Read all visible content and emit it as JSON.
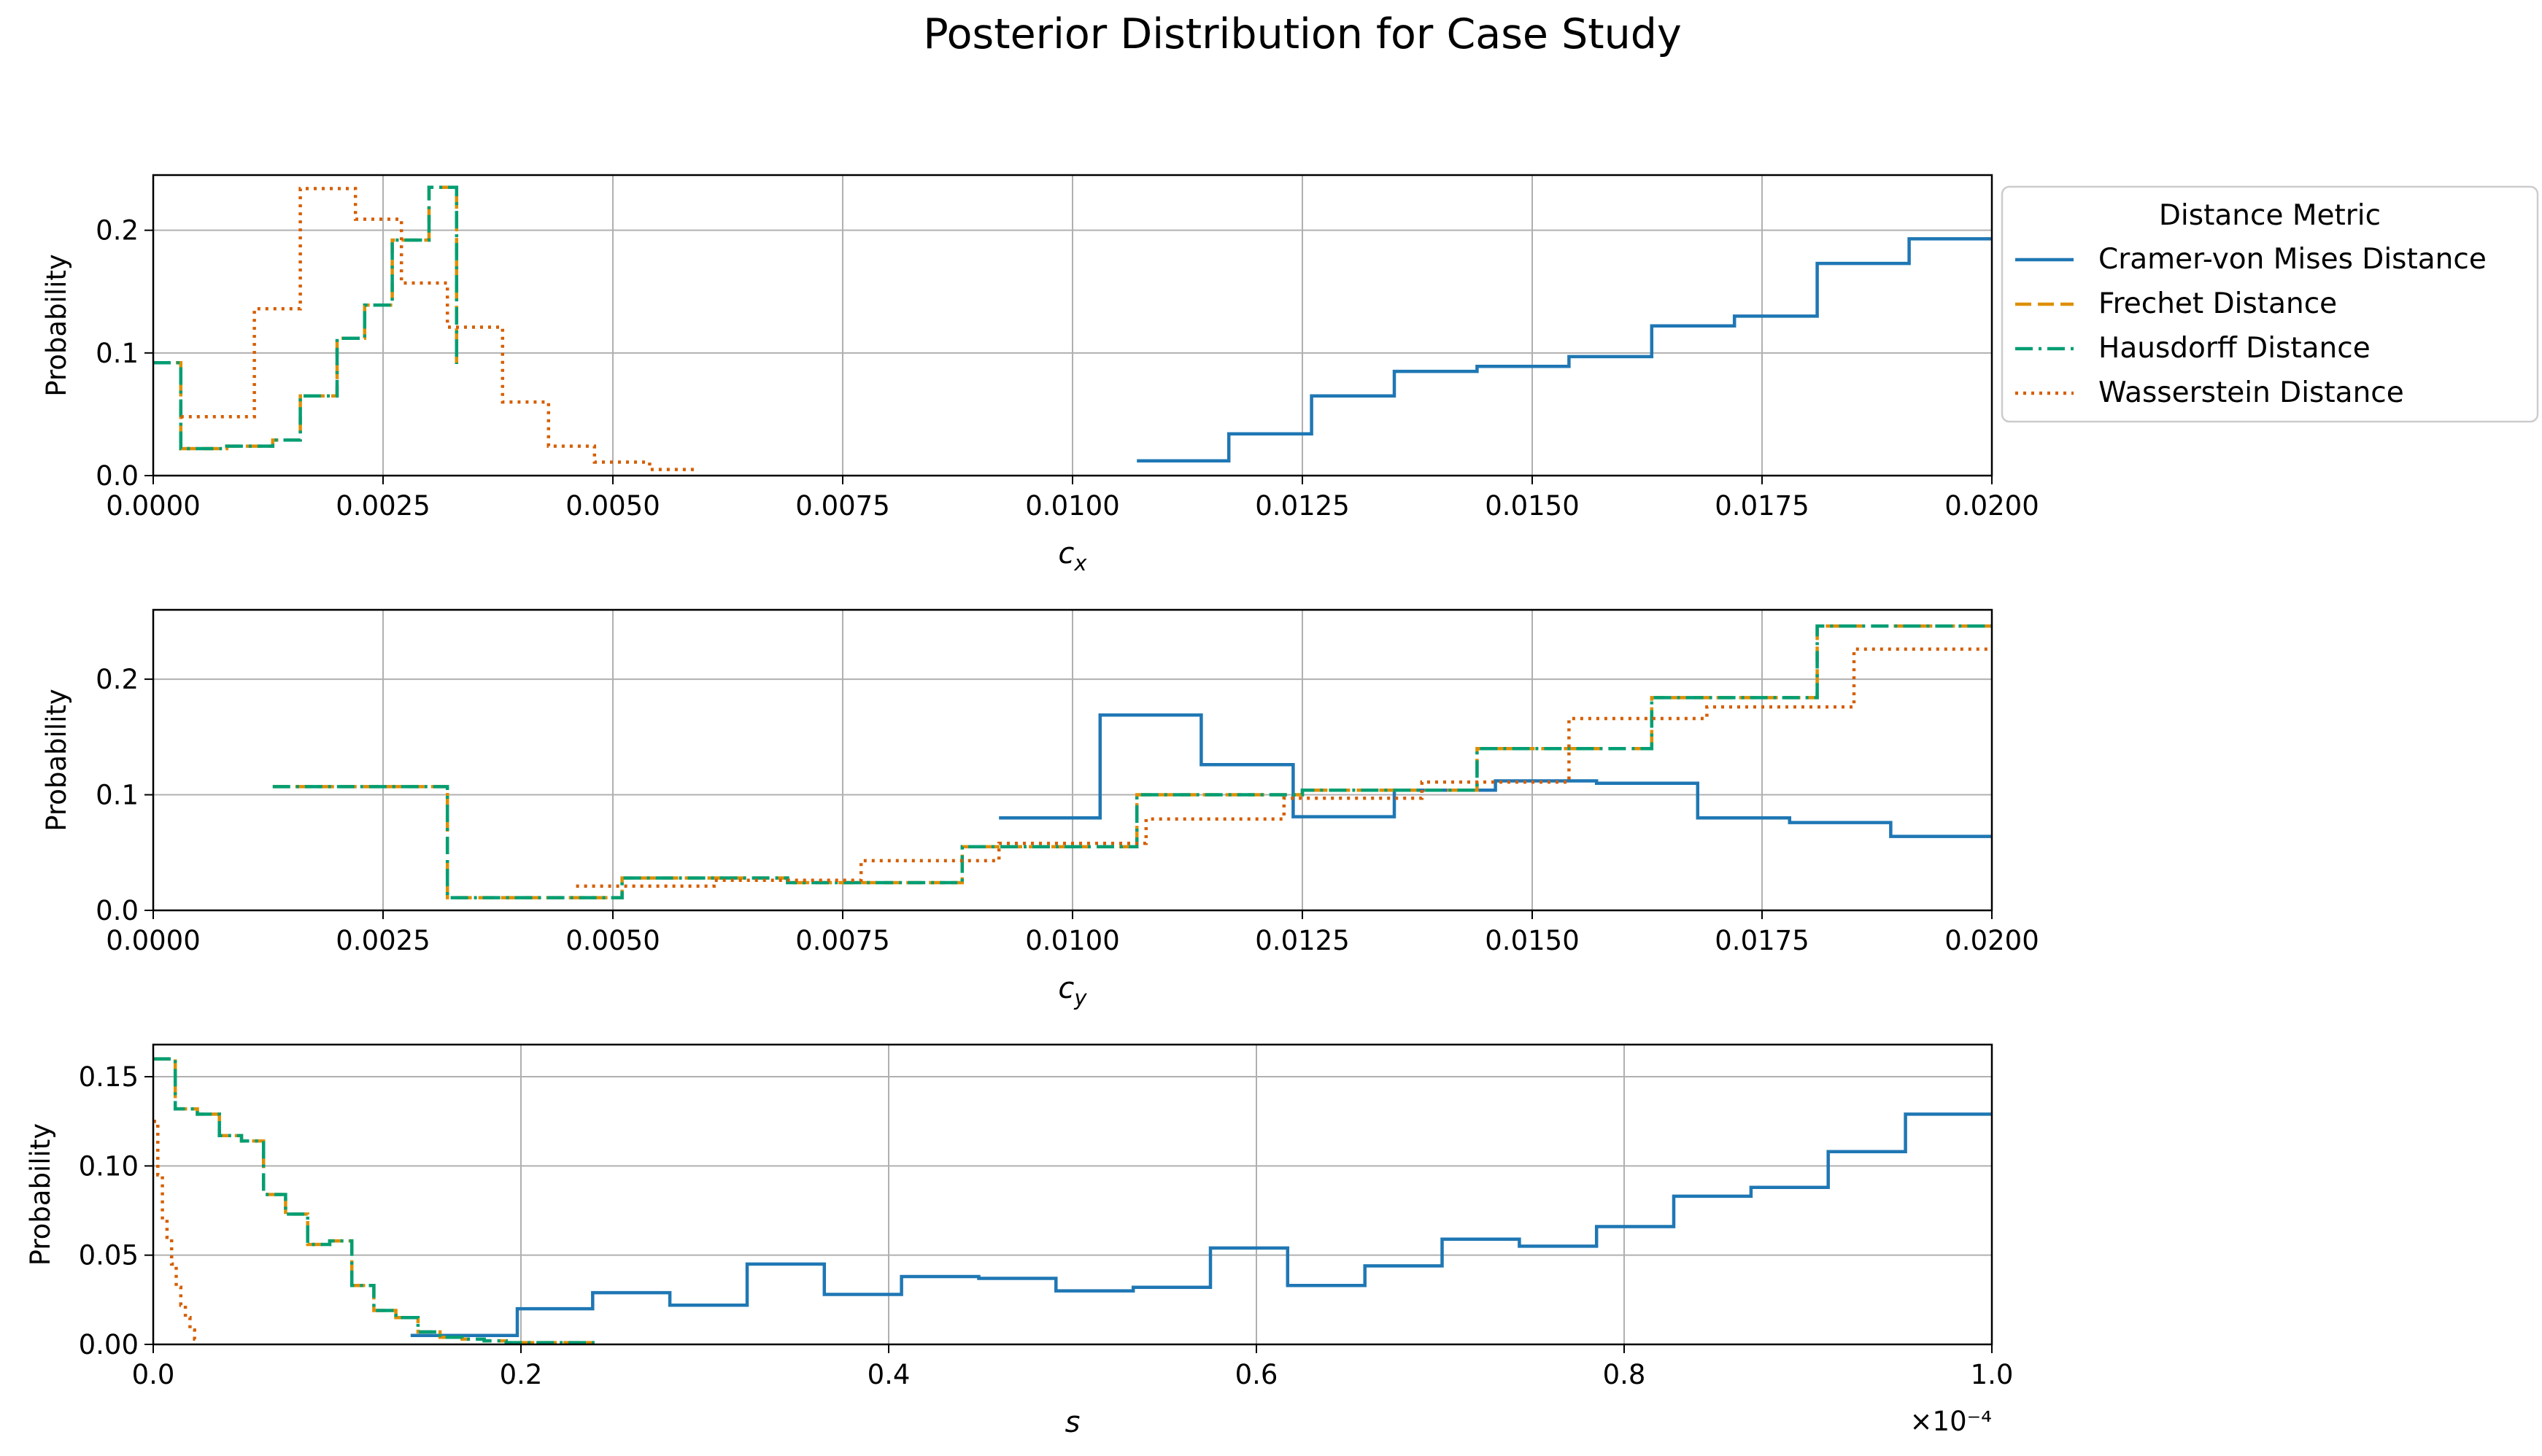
{
  "title": "Posterior Distribution for Case Study",
  "legend": {
    "title": "Distance Metric",
    "placement": "right-of-first-panel",
    "entries": [
      {
        "name": "Cramer-von Mises Distance",
        "color": "#1f77b4",
        "style": "solid"
      },
      {
        "name": "Frechet Distance",
        "color": "#de8f05",
        "style": "dashed"
      },
      {
        "name": "Hausdorff Distance",
        "color": "#029e73",
        "style": "dashdot"
      },
      {
        "name": "Wasserstein Distance",
        "color": "#d55e00",
        "style": "dotted"
      }
    ]
  },
  "chart_data": [
    {
      "type": "step",
      "xlabel": "c_x",
      "ylabel": "Probability",
      "xlim": [
        0,
        0.02
      ],
      "ylim": [
        0,
        0.245
      ],
      "grid": true,
      "xticks": [
        0,
        0.0025,
        0.005,
        0.0075,
        0.01,
        0.0125,
        0.015,
        0.0175,
        0.02
      ],
      "xtick_labels": [
        "0.0000",
        "0.0025",
        "0.0050",
        "0.0075",
        "0.0100",
        "0.0125",
        "0.0150",
        "0.0175",
        "0.0200"
      ],
      "yticks": [
        0,
        0.1,
        0.2
      ],
      "ytick_labels": [
        "0.0",
        "0.1",
        "0.2"
      ],
      "series": [
        {
          "name": "Cramer-von Mises Distance",
          "edges": [
            0.0107,
            0.0117,
            0.0126,
            0.0135,
            0.0144,
            0.0154,
            0.0163,
            0.0172,
            0.0181,
            0.0191,
            0.02
          ],
          "values": [
            0.012,
            0.034,
            0.065,
            0.085,
            0.089,
            0.097,
            0.122,
            0.13,
            0.173,
            0.193
          ]
        },
        {
          "name": "Frechet Distance",
          "edges": [
            0.0,
            0.0003,
            0.0008,
            0.0013,
            0.0016,
            0.002,
            0.0023,
            0.0026,
            0.003,
            0.0033
          ],
          "values": [
            0.092,
            0.022,
            0.024,
            0.029,
            0.065,
            0.112,
            0.139,
            0.192,
            0.235,
            0.091
          ]
        },
        {
          "name": "Hausdorff Distance",
          "edges": [
            0.0,
            0.0003,
            0.0008,
            0.0013,
            0.0016,
            0.002,
            0.0023,
            0.0026,
            0.003,
            0.0033
          ],
          "values": [
            0.092,
            0.022,
            0.024,
            0.029,
            0.065,
            0.112,
            0.139,
            0.192,
            0.235,
            0.091
          ]
        },
        {
          "name": "Wasserstein Distance",
          "edges": [
            0.0003,
            0.0011,
            0.0016,
            0.0022,
            0.0027,
            0.0032,
            0.0038,
            0.0043,
            0.0048,
            0.0054,
            0.0059
          ],
          "values": [
            0.048,
            0.136,
            0.234,
            0.209,
            0.157,
            0.121,
            0.06,
            0.024,
            0.011,
            0.005
          ]
        }
      ]
    },
    {
      "type": "step",
      "xlabel": "c_y",
      "ylabel": "Probability",
      "xlim": [
        0,
        0.02
      ],
      "ylim": [
        0,
        0.26
      ],
      "grid": true,
      "xticks": [
        0,
        0.0025,
        0.005,
        0.0075,
        0.01,
        0.0125,
        0.015,
        0.0175,
        0.02
      ],
      "xtick_labels": [
        "0.0000",
        "0.0025",
        "0.0050",
        "0.0075",
        "0.0100",
        "0.0125",
        "0.0150",
        "0.0175",
        "0.0200"
      ],
      "yticks": [
        0,
        0.1,
        0.2
      ],
      "ytick_labels": [
        "0.0",
        "0.1",
        "0.2"
      ],
      "series": [
        {
          "name": "Cramer-von Mises Distance",
          "edges": [
            0.0092,
            0.0103,
            0.0114,
            0.0124,
            0.0135,
            0.0146,
            0.0157,
            0.0168,
            0.0178,
            0.0189,
            0.02
          ],
          "values": [
            0.08,
            0.169,
            0.126,
            0.081,
            0.104,
            0.112,
            0.11,
            0.08,
            0.076,
            0.064
          ]
        },
        {
          "name": "Frechet Distance",
          "edges": [
            0.0013,
            0.0032,
            0.0051,
            0.0069,
            0.0088,
            0.0107,
            0.0125,
            0.0144,
            0.0163,
            0.0181,
            0.02
          ],
          "values": [
            0.107,
            0.011,
            0.028,
            0.024,
            0.055,
            0.1,
            0.104,
            0.14,
            0.184,
            0.246
          ]
        },
        {
          "name": "Hausdorff Distance",
          "edges": [
            0.0013,
            0.0032,
            0.0051,
            0.0069,
            0.0088,
            0.0107,
            0.0125,
            0.0144,
            0.0163,
            0.0181,
            0.02
          ],
          "values": [
            0.107,
            0.011,
            0.028,
            0.024,
            0.055,
            0.1,
            0.104,
            0.14,
            0.184,
            0.246
          ]
        },
        {
          "name": "Wasserstein Distance",
          "edges": [
            0.0046,
            0.0061,
            0.0077,
            0.0092,
            0.0108,
            0.0123,
            0.0138,
            0.0154,
            0.0169,
            0.0185,
            0.02
          ],
          "values": [
            0.021,
            0.026,
            0.043,
            0.058,
            0.079,
            0.097,
            0.111,
            0.166,
            0.176,
            0.226
          ]
        }
      ]
    },
    {
      "type": "step",
      "xlabel": "s",
      "ylabel": "Probability",
      "xlim": [
        0,
        1.0
      ],
      "x_scale_note": "×10⁻⁴",
      "ylim": [
        0,
        0.168
      ],
      "grid": true,
      "xticks": [
        0,
        0.2,
        0.4,
        0.6,
        0.8,
        1.0
      ],
      "xtick_labels": [
        "0.0",
        "0.2",
        "0.4",
        "0.6",
        "0.8",
        "1.0"
      ],
      "yticks": [
        0,
        0.05,
        0.1,
        0.15
      ],
      "ytick_labels": [
        "0.00",
        "0.05",
        "0.10",
        "0.15"
      ],
      "series": [
        {
          "name": "Cramer-von Mises Distance",
          "edges": [
            0.14,
            0.198,
            0.239,
            0.281,
            0.323,
            0.365,
            0.407,
            0.449,
            0.491,
            0.533,
            0.575,
            0.617,
            0.659,
            0.701,
            0.743,
            0.785,
            0.827,
            0.869,
            0.911,
            0.953,
            1.0
          ],
          "values": [
            0.005,
            0.02,
            0.029,
            0.022,
            0.045,
            0.028,
            0.038,
            0.037,
            0.03,
            0.032,
            0.054,
            0.033,
            0.044,
            0.059,
            0.055,
            0.066,
            0.083,
            0.088,
            0.108,
            0.129
          ]
        },
        {
          "name": "Frechet Distance",
          "edges": [
            0.0,
            0.012,
            0.024,
            0.036,
            0.048,
            0.06,
            0.072,
            0.084,
            0.096,
            0.108,
            0.12,
            0.132,
            0.144,
            0.156,
            0.168,
            0.18,
            0.192,
            0.204,
            0.216,
            0.228,
            0.24
          ],
          "values": [
            0.16,
            0.132,
            0.129,
            0.117,
            0.114,
            0.084,
            0.073,
            0.056,
            0.058,
            0.033,
            0.019,
            0.015,
            0.007,
            0.004,
            0.003,
            0.002,
            0.001,
            0.001,
            0.001,
            0.001
          ]
        },
        {
          "name": "Hausdorff Distance",
          "edges": [
            0.0,
            0.012,
            0.024,
            0.036,
            0.048,
            0.06,
            0.072,
            0.084,
            0.096,
            0.108,
            0.12,
            0.132,
            0.144,
            0.156,
            0.168,
            0.18,
            0.192,
            0.204,
            0.216,
            0.228,
            0.24
          ],
          "values": [
            0.16,
            0.132,
            0.129,
            0.117,
            0.114,
            0.084,
            0.073,
            0.056,
            0.058,
            0.033,
            0.019,
            0.015,
            0.007,
            0.004,
            0.003,
            0.002,
            0.001,
            0.001,
            0.001,
            0.001
          ]
        },
        {
          "name": "Wasserstein Distance",
          "edges": [
            0.0,
            0.0025,
            0.005,
            0.0075,
            0.01,
            0.0125,
            0.015,
            0.0175,
            0.02,
            0.0225,
            0.025
          ],
          "values": [
            0.125,
            0.095,
            0.07,
            0.06,
            0.045,
            0.032,
            0.022,
            0.015,
            0.008,
            0.003
          ]
        }
      ]
    }
  ]
}
